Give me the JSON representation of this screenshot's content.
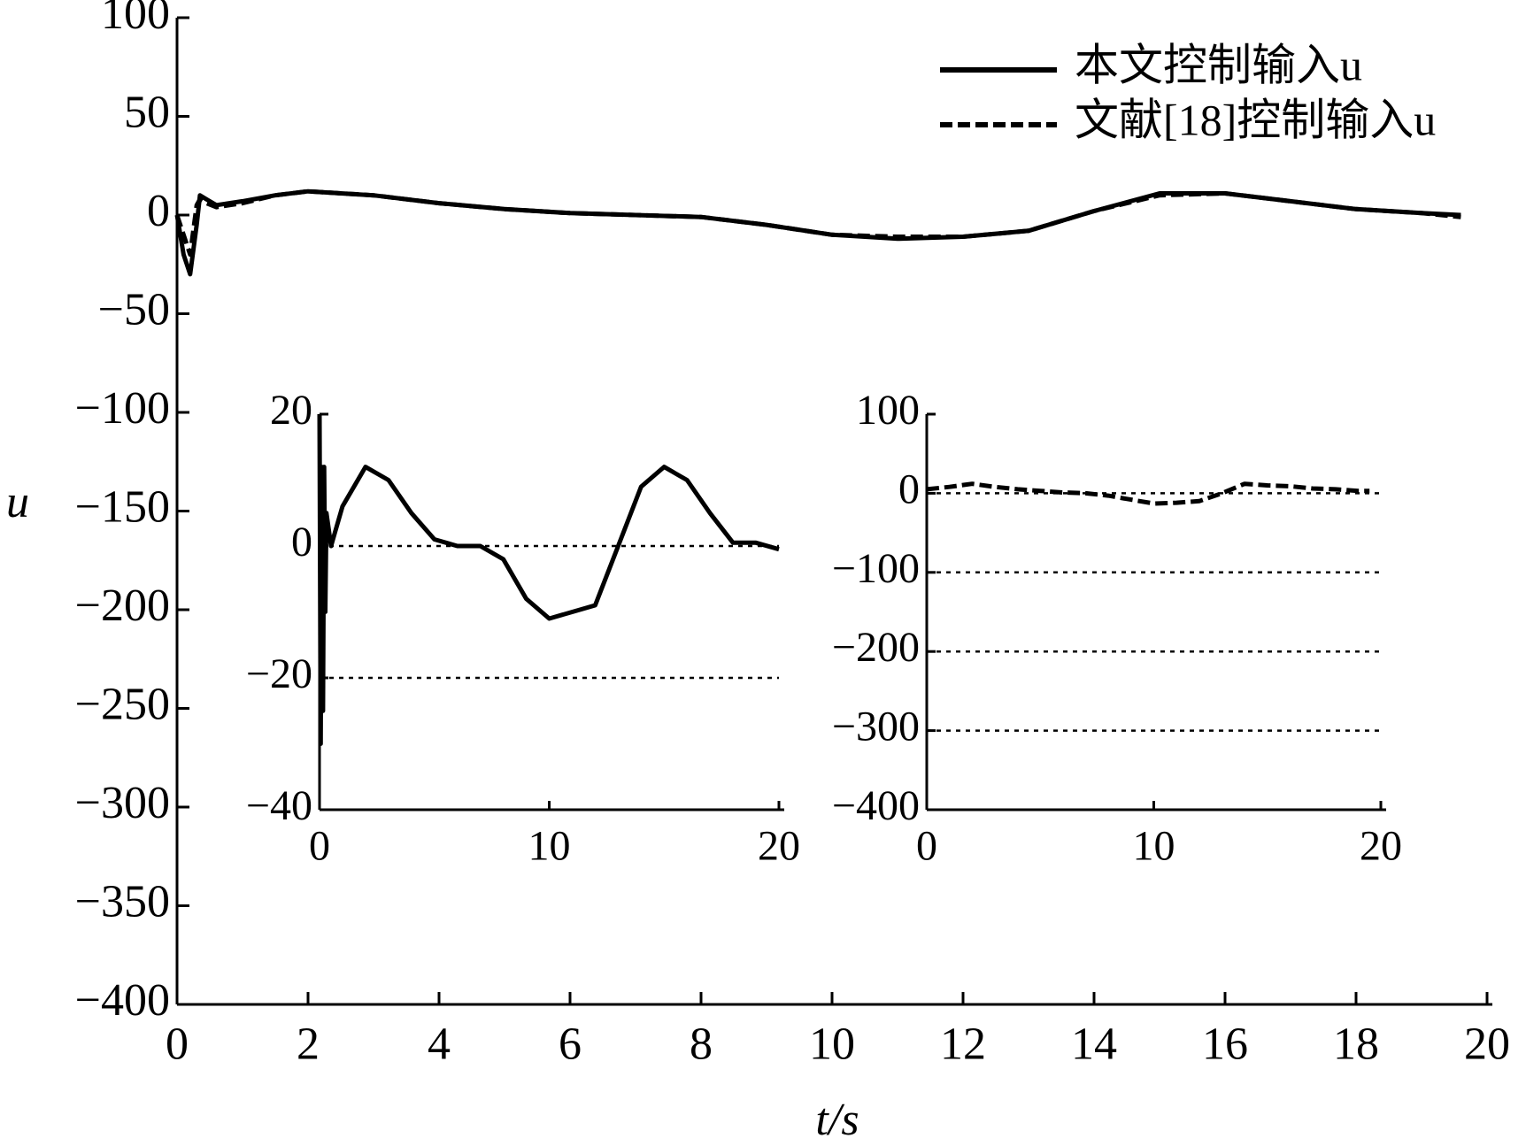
{
  "chart_data": [
    {
      "type": "line",
      "xlabel": "t/s",
      "ylabel": "u",
      "x": [
        0,
        0.1,
        0.2,
        0.3,
        0.35,
        0.45,
        0.6,
        1,
        1.5,
        2,
        3,
        4,
        5,
        6,
        7,
        8,
        9,
        10,
        11,
        12,
        13,
        14,
        15,
        16,
        17,
        18,
        19,
        19.6
      ],
      "xlim": [
        0,
        20
      ],
      "xticks": [
        0,
        2,
        4,
        6,
        8,
        10,
        12,
        14,
        16,
        18,
        20
      ],
      "ylim": [
        -400,
        100
      ],
      "yticks": [
        100,
        50,
        0,
        {
          "value": -50,
          "label": "−50"
        },
        {
          "value": -100,
          "label": "−100"
        },
        {
          "value": -150,
          "label": "−150"
        },
        {
          "value": -200,
          "label": "−200"
        },
        {
          "value": -250,
          "label": "−250"
        },
        {
          "value": -300,
          "label": "−300"
        },
        {
          "value": -350,
          "label": "−350"
        },
        {
          "value": -400,
          "label": "−400"
        }
      ],
      "legend": "upper right",
      "series": [
        {
          "name": "本文控制输入u",
          "color": "#000000",
          "style": "solid",
          "values": [
            0,
            -20,
            -30,
            -5,
            10,
            8,
            5,
            7,
            10,
            12,
            10,
            6,
            3,
            1,
            0,
            -1,
            -5,
            -10,
            -12,
            -11,
            -8,
            2,
            11,
            11,
            7,
            3,
            1,
            0
          ]
        },
        {
          "name": "文献[18]控制输入u",
          "color": "#000000",
          "style": "dashed",
          "values": [
            0,
            -10,
            -20,
            5,
            8,
            6,
            4,
            6,
            10,
            12,
            10,
            6,
            3,
            1,
            0,
            -1,
            -5,
            -10,
            -11,
            -11,
            -8,
            2,
            10,
            11,
            7,
            3,
            1,
            -1
          ]
        }
      ]
    },
    {
      "type": "line",
      "x": [
        0,
        0.05,
        0.1,
        0.15,
        0.2,
        0.25,
        0.3,
        0.5,
        1,
        2,
        3,
        4,
        5,
        6,
        7,
        8,
        9,
        10,
        11,
        12,
        13,
        14,
        15,
        16,
        17,
        18,
        19,
        20
      ],
      "xlim": [
        0,
        20
      ],
      "xticks": [
        0,
        10,
        20
      ],
      "ylim": [
        -40,
        20
      ],
      "yticks": [
        20,
        0,
        {
          "value": -20,
          "label": "−20"
        },
        {
          "value": -40,
          "label": "−40"
        }
      ],
      "grid": "dotted",
      "series": [
        {
          "color": "#000000",
          "style": "solid",
          "values": [
            20,
            -30,
            12,
            -25,
            12,
            -10,
            5,
            0,
            6,
            12,
            10,
            5,
            1,
            0,
            0,
            -2,
            -8,
            -11,
            -10,
            -9,
            0,
            9,
            12,
            10,
            5,
            0.5,
            0.5,
            -0.5
          ]
        }
      ]
    },
    {
      "type": "line",
      "x": [
        0,
        1,
        2,
        3,
        4,
        5,
        6,
        7,
        8,
        9,
        10,
        11,
        12,
        13,
        14,
        15,
        16,
        17,
        18,
        19,
        19.5
      ],
      "xlim": [
        0,
        20
      ],
      "xticks": [
        0,
        10,
        20
      ],
      "ylim": [
        -400,
        100
      ],
      "yticks": [
        100,
        0,
        {
          "value": -100,
          "label": "−100"
        },
        {
          "value": -200,
          "label": "−200"
        },
        {
          "value": -300,
          "label": "−300"
        },
        {
          "value": -400,
          "label": "−400"
        }
      ],
      "grid": "dotted",
      "series": [
        {
          "color": "#000000",
          "style": "dashed",
          "values": [
            5,
            8,
            12,
            8,
            5,
            3,
            1,
            0,
            -3,
            -8,
            -13,
            -12,
            -10,
            0,
            12,
            10,
            9,
            6,
            5,
            3,
            3
          ]
        }
      ]
    }
  ]
}
